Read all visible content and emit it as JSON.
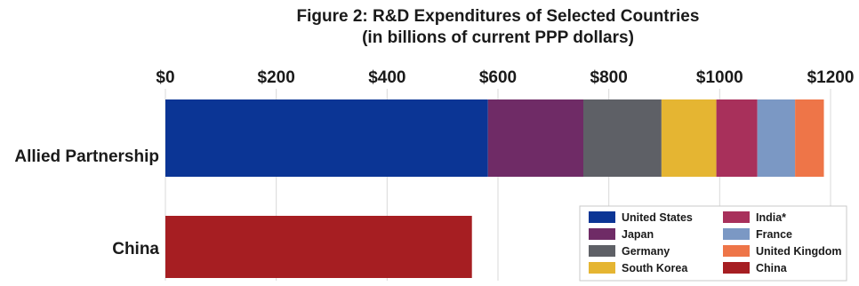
{
  "chart_data": {
    "type": "bar",
    "orientation": "horizontal",
    "stacked": true,
    "title": "Figure 2: R&D Expenditures of Selected Countries",
    "subtitle": "(in billions of current PPP dollars)",
    "xlabel": "",
    "ylabel": "",
    "xlim": [
      0,
      1200
    ],
    "x_ticks": [
      "$0",
      "$200",
      "$400",
      "$600",
      "$800",
      "$1000",
      "$1200"
    ],
    "x_tick_values": [
      0,
      200,
      400,
      600,
      800,
      1000,
      1200
    ],
    "x_axis_position": "top",
    "grid": true,
    "legend_position": "bottom-right",
    "categories": [
      "Allied Partnership",
      "China"
    ],
    "series": [
      {
        "name": "United States",
        "color": "#0b3595",
        "values": [
          582,
          0
        ]
      },
      {
        "name": "Japan",
        "color": "#6f2b66",
        "values": [
          172,
          0
        ]
      },
      {
        "name": "Germany",
        "color": "#5e6066",
        "values": [
          141,
          0
        ]
      },
      {
        "name": "South Korea",
        "color": "#e5b532",
        "values": [
          99,
          0
        ]
      },
      {
        "name": "India*",
        "color": "#a8305b",
        "values": [
          74,
          0
        ]
      },
      {
        "name": "France",
        "color": "#7b98c4",
        "values": [
          68,
          0
        ]
      },
      {
        "name": "United Kingdom",
        "color": "#ee7548",
        "values": [
          52,
          0
        ]
      },
      {
        "name": "China",
        "color": "#a61e22",
        "values": [
          0,
          553
        ]
      }
    ],
    "legend_order": [
      "United States",
      "India*",
      "Japan",
      "France",
      "Germany",
      "United Kingdom",
      "South Korea",
      "China"
    ]
  }
}
